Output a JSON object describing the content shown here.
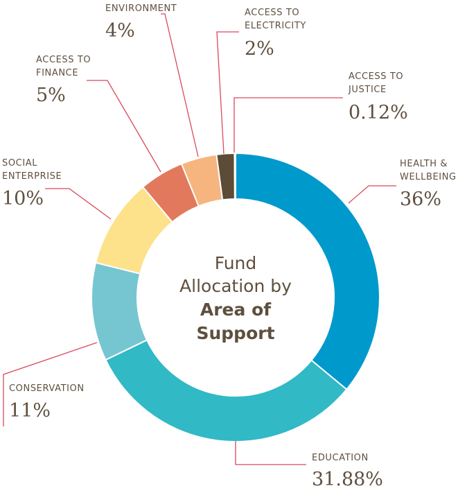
{
  "chart_data": {
    "type": "pie",
    "style": "donut",
    "center_title": {
      "lines": [
        "Fund",
        "Allocation by",
        "Area of",
        "Support"
      ],
      "bold_lines": [
        2,
        3
      ]
    },
    "categories": [
      "HEALTH & WELLBEING",
      "EDUCATION",
      "CONSERVATION",
      "SOCIAL ENTERPRISE",
      "ACCESS TO FINANCE",
      "ENVIRONMENT",
      "ACCESS TO ELECTRICITY",
      "ACCESS TO JUSTICE"
    ],
    "values": [
      36,
      31.88,
      11,
      10,
      5,
      4,
      2,
      0.12
    ],
    "value_labels": [
      "36%",
      "31.88%",
      "11%",
      "10%",
      "5%",
      "4%",
      "2%",
      "0.12%"
    ],
    "label_lines": [
      [
        "HEALTH &",
        "WELLBEING"
      ],
      [
        "EDUCATION"
      ],
      [
        "CONSERVATION"
      ],
      [
        "SOCIAL",
        "ENTERPRISE"
      ],
      [
        "ACCESS TO",
        "FINANCE"
      ],
      [
        "ENVIRONMENT"
      ],
      [
        "ACCESS TO",
        "ELECTRICITY"
      ],
      [
        "ACCESS TO",
        "JUSTICE"
      ]
    ],
    "colors": [
      "#0099cc",
      "#31b9c5",
      "#75c6d1",
      "#fde18b",
      "#e2795c",
      "#f6b57e",
      "#5c4b36",
      "#6f9a9e"
    ],
    "start": "12 o'clock",
    "direction": "clockwise"
  }
}
